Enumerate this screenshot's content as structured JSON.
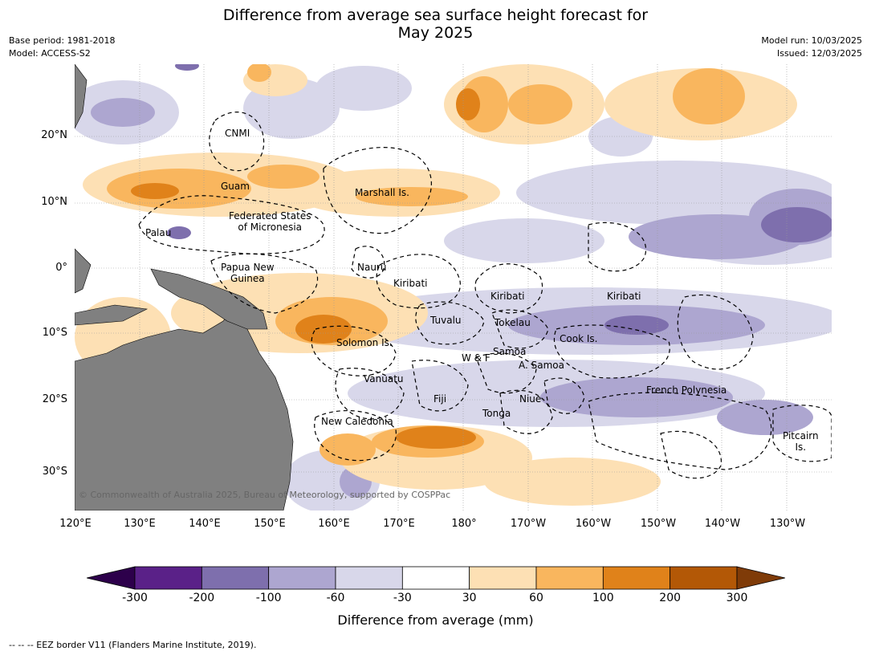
{
  "title_line1": "Difference from average sea surface height forecast for",
  "title_line2": "May 2025",
  "meta_left": [
    "Base period: 1981-2018",
    "Model: ACCESS-S2"
  ],
  "meta_right": [
    "Model run: 10/03/2025",
    "Issued: 12/03/2025"
  ],
  "lat_labels": [
    "20°N",
    "10°N",
    "0°",
    "10°S",
    "20°S",
    "30°S"
  ],
  "lon_labels": [
    "120°E",
    "130°E",
    "140°E",
    "150°E",
    "160°E",
    "170°E",
    "180°",
    "170°W",
    "160°W",
    "150°W",
    "140°W",
    "130°W"
  ],
  "places": {
    "cnmi": "CNMI",
    "guam": "Guam",
    "marshall": "Marshall Is.",
    "fsm1": "Federated States",
    "fsm2": "of Micronesia",
    "palau": "Palau",
    "png1": "Papua New",
    "png2": "Guinea",
    "nauru": "Nauru",
    "kiribati1": "Kiribati",
    "kiribati2": "Kiribati",
    "kiribati3": "Kiribati",
    "tuvalu": "Tuvalu",
    "tokelau": "Tokelau",
    "cook": "Cook Is.",
    "solomon": "Solomon Is.",
    "samoa": "Samoa",
    "wf": "W & F",
    "asamoa": "A. Samoa",
    "vanuatu": "Vanuatu",
    "fiji": "Fiji",
    "niue": "Niue",
    "tonga": "Tonga",
    "frenchpoly": "French Polynesia",
    "newcal": "New Caledonia",
    "pitcairn1": "Pitcairn",
    "pitcairn2": "Is."
  },
  "copyright": "© Commonwealth of Australia 2025, Bureau of Meteorology, supported by COSPPac",
  "colorbar": {
    "ticks": [
      "-300",
      "-200",
      "-100",
      "-60",
      "-30",
      "30",
      "60",
      "100",
      "200",
      "300"
    ],
    "colors": [
      "#5a2188",
      "#7e6fad",
      "#ada6d0",
      "#d8d7ea",
      "#ffffff",
      "#fde0b4",
      "#f9b65e",
      "#e0821a",
      "#b35806"
    ],
    "under_color": "#2d004b",
    "over_color": "#7f3b08",
    "label": "Difference from average (mm)"
  },
  "footer": "--  --  -- EEZ border V11 (Flanders Marine Institute, 2019)."
}
